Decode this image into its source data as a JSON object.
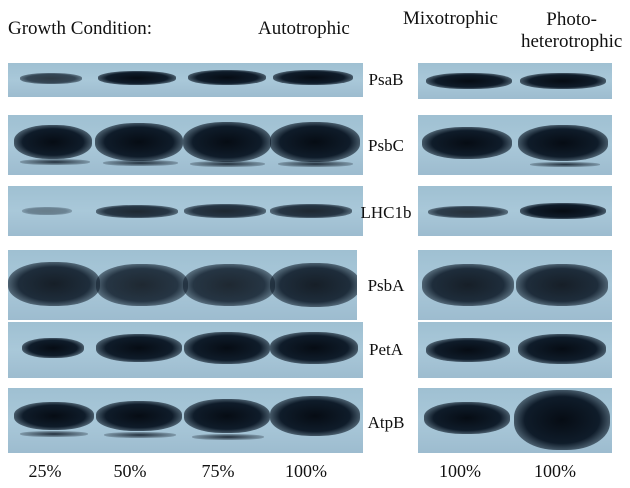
{
  "header": {
    "growth_condition": "Growth Condition:",
    "autotrophic": "Autotrophic",
    "mixotrophic": "Mixotrophic",
    "photoheterotrophic_line1": "Photo-",
    "photoheterotrophic_line2": "heterotrophic"
  },
  "proteins": [
    "PsaB",
    "PsbC",
    "LHC1b",
    "PsbA",
    "PetA",
    "AtpB"
  ],
  "lanes": [
    "25%",
    "50%",
    "75%",
    "100%",
    "100%",
    "100%"
  ],
  "colors": {
    "membrane": "#a9c8d9",
    "band": "#0b1520"
  }
}
